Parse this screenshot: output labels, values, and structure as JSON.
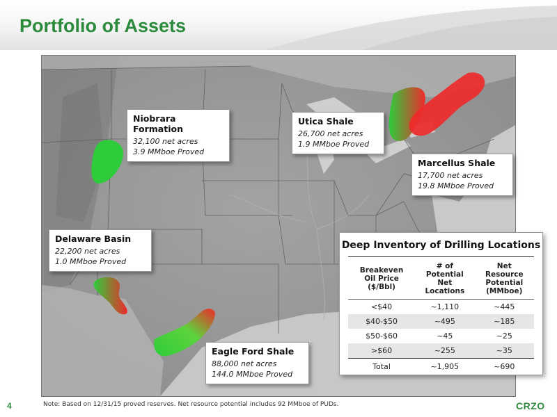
{
  "header": {
    "title": "Portfolio of Assets"
  },
  "assets": [
    {
      "name": "Niobrara Formation",
      "acres": "32,100 net acres",
      "proved": "3.9 MMboe Proved"
    },
    {
      "name": "Utica Shale",
      "acres": "26,700 net acres",
      "proved": "1.9 MMboe Proved"
    },
    {
      "name": "Marcellus Shale",
      "acres": "17,700 net acres",
      "proved": "19.8 MMboe Proved"
    },
    {
      "name": "Delaware Basin",
      "acres": "22,200 net acres",
      "proved": "1.0 MMboe Proved"
    },
    {
      "name": "Eagle Ford Shale",
      "acres": "88,000 net acres",
      "proved": "144.0 MMboe Proved"
    }
  ],
  "inventory": {
    "title": "Deep Inventory of Drilling Locations",
    "headers": {
      "col1": [
        "Breakeven",
        "Oil Price",
        "($/Bbl)"
      ],
      "col2": [
        "# of",
        "Potential",
        "Net",
        "Locations"
      ],
      "col3": [
        "Net",
        "Resource",
        "Potential",
        "(MMboe)"
      ]
    },
    "rows": [
      {
        "price": "<$40",
        "locations": "~1,110",
        "potential": "~445"
      },
      {
        "price": "$40-$50",
        "locations": "~495",
        "potential": "~185"
      },
      {
        "price": "$50-$60",
        "locations": "~45",
        "potential": "~25"
      },
      {
        "price": ">$60",
        "locations": "~255",
        "potential": "~35"
      }
    ],
    "total": {
      "label": "Total",
      "locations": "~1,905",
      "potential": "~690"
    }
  },
  "footer": {
    "note": "Note:  Based on 12/31/15 proved reserves. Net resource potential includes 92 MMboe of PUDs.",
    "page": "4",
    "logo": "CRZO"
  },
  "colors": {
    "brand_green": "#2c8a3c",
    "play_green": "#2ecc3a",
    "play_red": "#ee2a2a"
  }
}
